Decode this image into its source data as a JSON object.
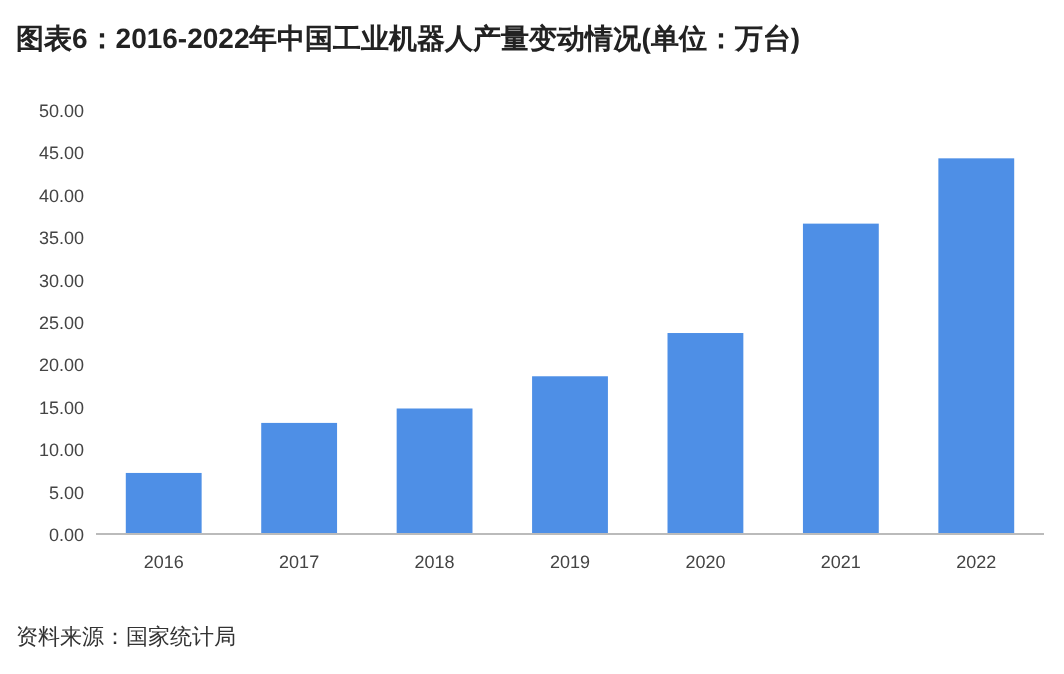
{
  "chart_data": {
    "type": "bar",
    "title": "图表6：2016-2022年中国工业机器人产量变动情况(单位：万台)",
    "categories": [
      "2016",
      "2017",
      "2018",
      "2019",
      "2020",
      "2021",
      "2022"
    ],
    "values": [
      7.2,
      13.1,
      14.8,
      18.6,
      23.7,
      36.6,
      44.3
    ],
    "color": "#4e8fe6",
    "ylim": [
      0,
      50
    ],
    "yticks": [
      {
        "value": 0,
        "label": "0.00"
      },
      {
        "value": 5,
        "label": "5.00"
      },
      {
        "value": 10,
        "label": "10.00"
      },
      {
        "value": 15,
        "label": "15.00"
      },
      {
        "value": 20,
        "label": "20.00"
      },
      {
        "value": 25,
        "label": "25.00"
      },
      {
        "value": 30,
        "label": "30.00"
      },
      {
        "value": 35,
        "label": "35.00"
      },
      {
        "value": 40,
        "label": "40.00"
      },
      {
        "value": 45,
        "label": "45.00"
      },
      {
        "value": 50,
        "label": "50.00"
      }
    ],
    "grid": false,
    "annotations": [
      "资料来源：国家统计局"
    ]
  }
}
